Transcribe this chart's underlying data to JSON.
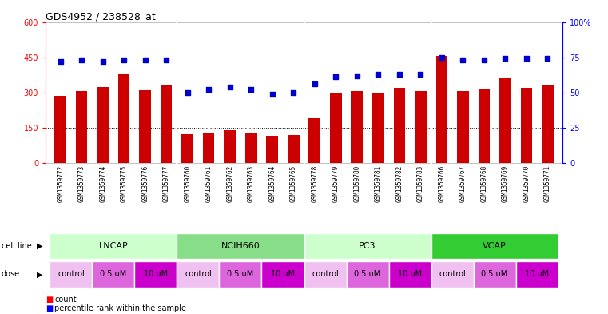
{
  "title": "GDS4952 / 238528_at",
  "samples": [
    "GSM1359772",
    "GSM1359773",
    "GSM1359774",
    "GSM1359775",
    "GSM1359776",
    "GSM1359777",
    "GSM1359760",
    "GSM1359761",
    "GSM1359762",
    "GSM1359763",
    "GSM1359764",
    "GSM1359765",
    "GSM1359778",
    "GSM1359779",
    "GSM1359780",
    "GSM1359781",
    "GSM1359782",
    "GSM1359783",
    "GSM1359766",
    "GSM1359767",
    "GSM1359768",
    "GSM1359769",
    "GSM1359770",
    "GSM1359771"
  ],
  "bar_values": [
    285,
    305,
    325,
    380,
    310,
    335,
    125,
    130,
    140,
    130,
    115,
    120,
    190,
    295,
    305,
    300,
    320,
    305,
    455,
    305,
    315,
    365,
    320,
    330
  ],
  "percentile_values": [
    72,
    73,
    72,
    73,
    73,
    73,
    50,
    52,
    54,
    52,
    49,
    50,
    56,
    61,
    62,
    63,
    63,
    63,
    75,
    73,
    73,
    74,
    74,
    74
  ],
  "cell_lines": [
    {
      "name": "LNCAP",
      "start": 0,
      "end": 6,
      "color": "#ccffcc"
    },
    {
      "name": "NCIH660",
      "start": 6,
      "end": 12,
      "color": "#88dd88"
    },
    {
      "name": "PC3",
      "start": 12,
      "end": 18,
      "color": "#ccffcc"
    },
    {
      "name": "VCAP",
      "start": 18,
      "end": 24,
      "color": "#33cc33"
    }
  ],
  "dose_groups": [
    {
      "name": "control",
      "start": 0,
      "end": 2,
      "color": "#f0c0f0"
    },
    {
      "name": "0.5 uM",
      "start": 2,
      "end": 4,
      "color": "#dd66dd"
    },
    {
      "name": "10 uM",
      "start": 4,
      "end": 6,
      "color": "#cc00cc"
    },
    {
      "name": "control",
      "start": 6,
      "end": 8,
      "color": "#f0c0f0"
    },
    {
      "name": "0.5 uM",
      "start": 8,
      "end": 10,
      "color": "#dd66dd"
    },
    {
      "name": "10 uM",
      "start": 10,
      "end": 12,
      "color": "#cc00cc"
    },
    {
      "name": "control",
      "start": 12,
      "end": 14,
      "color": "#f0c0f0"
    },
    {
      "name": "0.5 uM",
      "start": 14,
      "end": 16,
      "color": "#dd66dd"
    },
    {
      "name": "10 uM",
      "start": 16,
      "end": 18,
      "color": "#cc00cc"
    },
    {
      "name": "control",
      "start": 18,
      "end": 20,
      "color": "#f0c0f0"
    },
    {
      "name": "0.5 uM",
      "start": 20,
      "end": 22,
      "color": "#dd66dd"
    },
    {
      "name": "10 uM",
      "start": 22,
      "end": 24,
      "color": "#cc00cc"
    }
  ],
  "bar_color": "#cc0000",
  "percentile_color": "#0000cc",
  "ylim_left": [
    0,
    600
  ],
  "ylim_right": [
    0,
    100
  ],
  "yticks_left": [
    0,
    150,
    300,
    450,
    600
  ],
  "yticks_right": [
    0,
    25,
    50,
    75,
    100
  ],
  "ytick_labels_left": [
    "0",
    "150",
    "300",
    "450",
    "600"
  ],
  "ytick_labels_right": [
    "0",
    "25",
    "50",
    "75",
    "100%"
  ],
  "grid_values": [
    150,
    300,
    450
  ],
  "sample_bg_color": "#dddddd",
  "bg_color": "#ffffff"
}
